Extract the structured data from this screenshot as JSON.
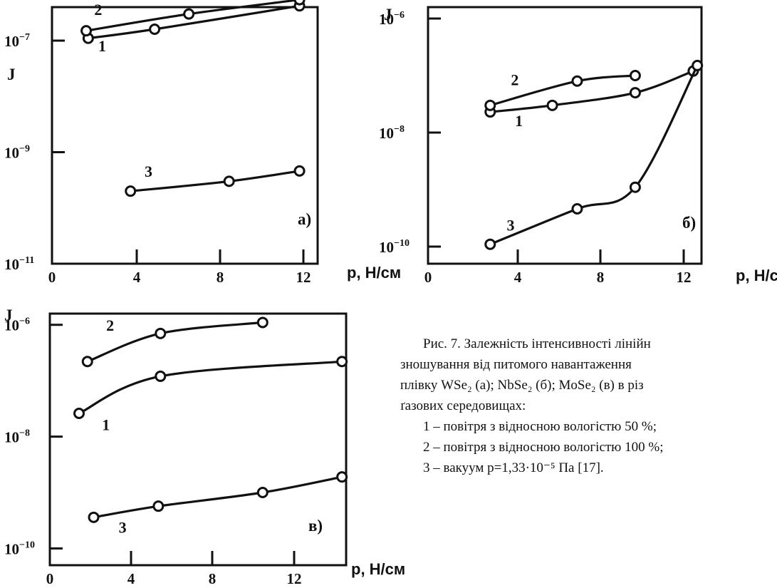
{
  "charts": [
    {
      "id": "a",
      "type": "line",
      "ylabel": "J",
      "xlabel": "p, Н/см",
      "panel_label": "а)",
      "xlim": [
        0,
        13.2
      ],
      "ylim_log10": [
        -11,
        -6.4
      ],
      "xticks": [
        0,
        4,
        8,
        12
      ],
      "ytick_labels": [
        {
          "exp": -7,
          "text": "10",
          "sup": "−7"
        },
        {
          "exp": -9,
          "text": "10",
          "sup": "−9"
        },
        {
          "exp": -11,
          "text": "10",
          "sup": "−11"
        }
      ],
      "series": [
        {
          "label": "1",
          "points": [
            [
              1.8,
              1.1e-07
            ],
            [
              5.1,
              1.6e-07
            ],
            [
              12.3,
              4.2e-07
            ]
          ],
          "label_at": [
            2.3,
            6.4e-08
          ]
        },
        {
          "label": "2",
          "points": [
            [
              1.7,
              1.5e-07
            ],
            [
              6.8,
              3e-07
            ],
            [
              12.3,
              5.4e-07
            ]
          ],
          "label_at": [
            2.1,
            2.9e-07
          ]
        },
        {
          "label": "3",
          "points": [
            [
              3.9,
              2e-10
            ],
            [
              8.8,
              3e-10
            ],
            [
              12.3,
              4.6e-10
            ]
          ],
          "label_at": [
            4.6,
            3.6e-10
          ]
        }
      ]
    },
    {
      "id": "b",
      "type": "line",
      "ylabel": "J",
      "xlabel": "p, Н/см",
      "panel_label": "б)",
      "xlim": [
        0,
        13.2
      ],
      "ylim_log10": [
        -10.3,
        -5.8
      ],
      "xticks": [
        0,
        4,
        8,
        12
      ],
      "ytick_labels": [
        {
          "exp": -6,
          "text": "10",
          "sup": "−6"
        },
        {
          "exp": -8,
          "text": "10",
          "sup": "−8"
        },
        {
          "exp": -10,
          "text": "10",
          "sup": "−10"
        }
      ],
      "series": [
        {
          "label": "1",
          "points": [
            [
              3.0,
              2.3e-08
            ],
            [
              6.0,
              3e-08
            ],
            [
              10.0,
              5e-08
            ],
            [
              12.8,
              1.2e-07
            ]
          ],
          "label_at": [
            4.2,
            1.3e-08
          ]
        },
        {
          "label": "2",
          "points": [
            [
              3.0,
              3e-08
            ],
            [
              7.2,
              8e-08
            ],
            [
              10.0,
              1e-07
            ]
          ],
          "label_at": [
            4.0,
            6.8e-08
          ]
        },
        {
          "label": "3",
          "points": [
            [
              3.0,
              1.1e-10
            ],
            [
              7.2,
              4.6e-10
            ],
            [
              10.0,
              1.1e-09
            ],
            [
              13.0,
              1.5e-07
            ]
          ],
          "label_at": [
            3.8,
            1.9e-10
          ]
        }
      ]
    },
    {
      "id": "c",
      "type": "line",
      "ylabel": "J",
      "xlabel": "p, Н/см",
      "panel_label": "в)",
      "xlim": [
        0,
        14.2
      ],
      "ylim_log10": [
        -10.3,
        -5.8
      ],
      "xticks": [
        0,
        4,
        8,
        12
      ],
      "ytick_labels": [
        {
          "exp": -6,
          "text": "10",
          "sup": "−6"
        },
        {
          "exp": -8,
          "text": "10",
          "sup": "−8"
        },
        {
          "exp": -10,
          "text": "10",
          "sup": "−10"
        }
      ],
      "series": [
        {
          "label": "1",
          "points": [
            [
              1.4,
              2.6e-08
            ],
            [
              5.3,
              1.2e-07
            ],
            [
              14.0,
              2.2e-07
            ]
          ],
          "label_at": [
            2.5,
            1.3e-08
          ]
        },
        {
          "label": "2",
          "points": [
            [
              1.8,
              2.2e-07
            ],
            [
              5.3,
              7e-07
            ],
            [
              10.2,
              1.1e-06
            ]
          ],
          "label_at": [
            2.7,
            7.8e-07
          ]
        },
        {
          "label": "3",
          "points": [
            [
              2.1,
              3.6e-10
            ],
            [
              5.2,
              5.7e-10
            ],
            [
              10.2,
              1e-09
            ],
            [
              14.0,
              1.9e-09
            ]
          ],
          "label_at": [
            3.3,
            1.9e-10
          ]
        }
      ]
    }
  ],
  "caption": {
    "line1": "Рис. 7. Залежність  інтенсивності  лінійн",
    "line2": "зношування  від  питомого  навантаження",
    "line3": "плівку WSe₂ (а); NbSe₂ (б); MoSe₂ (в) в різ",
    "line4": "ґазових середовищах:",
    "legend": [
      "1 – повітря з відносною вологістю 50 %;",
      "2 – повітря з відносною вологістю 100 %;",
      "3 – вакуум p=1,33·10⁻⁵ Па [17]."
    ]
  }
}
